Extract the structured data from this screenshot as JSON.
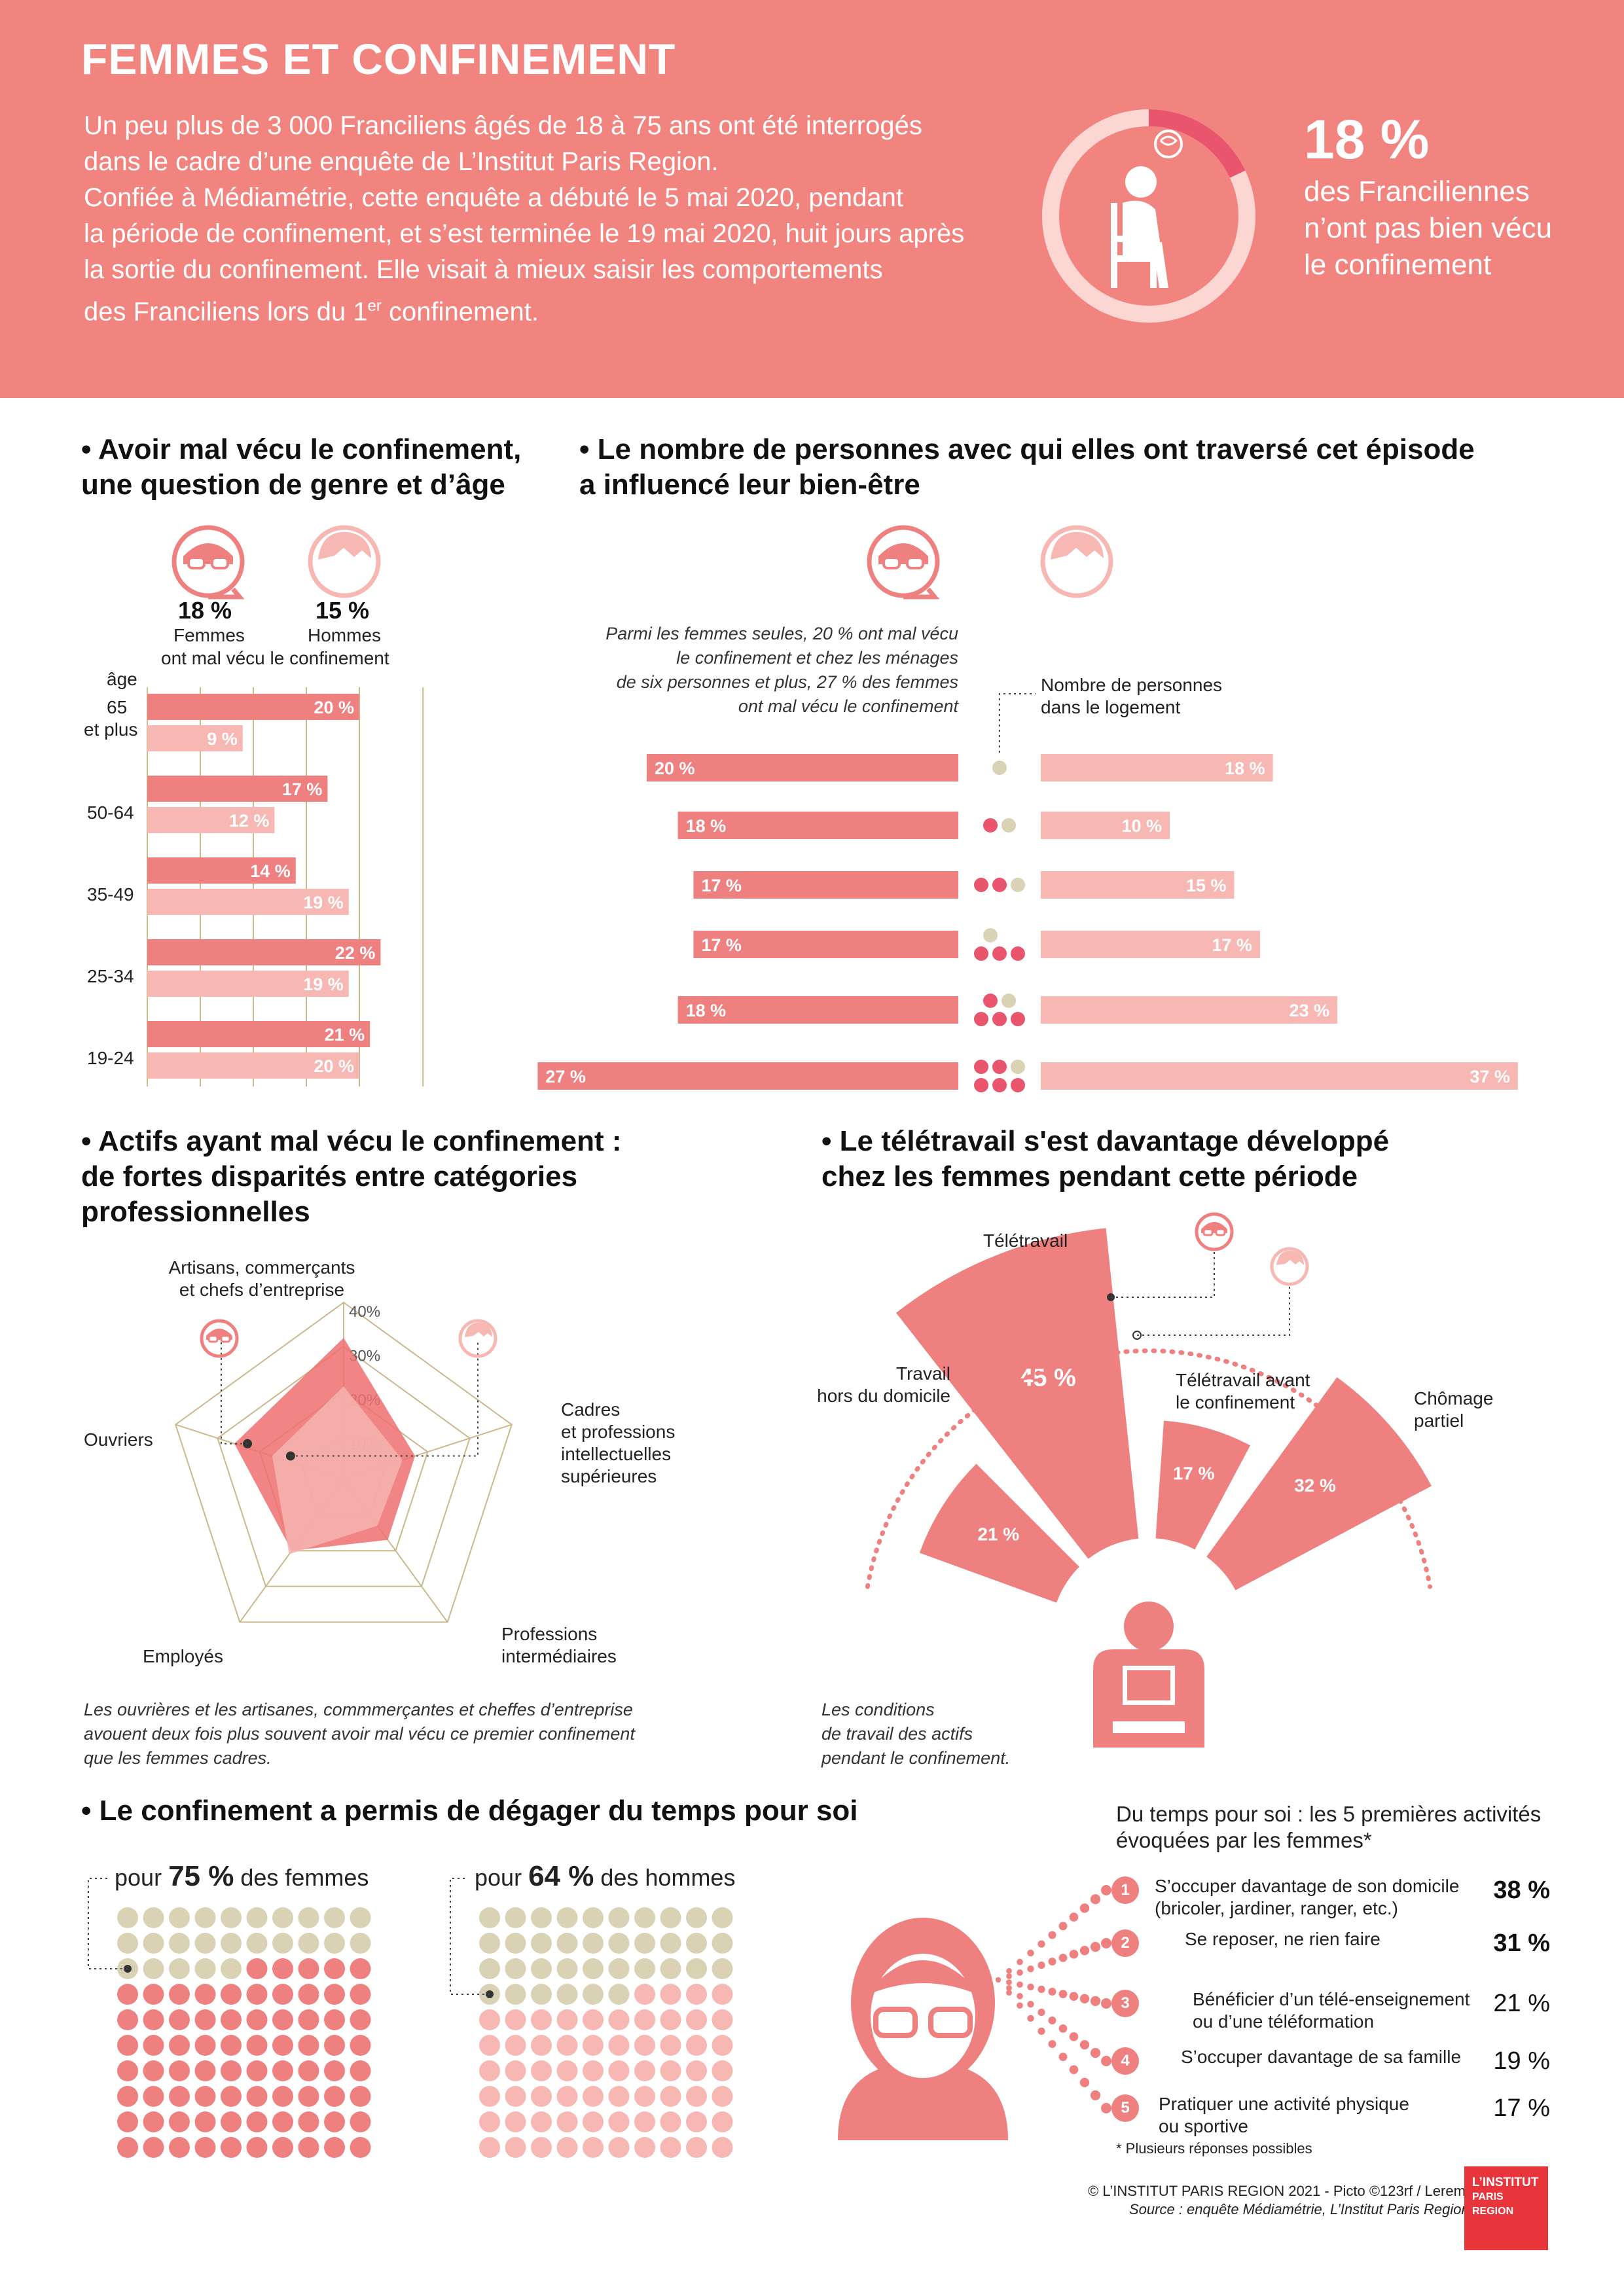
{
  "colors": {
    "header": "#f2847f",
    "women": "#ee8080",
    "men": "#f7b8b4",
    "women_dark": "#e8556c",
    "neutral": "#d9d2b5",
    "women_radar": "#ee7070",
    "men_radar": "#f6b4b0"
  },
  "header": {
    "title": "FEMMES ET CONFINEMENT",
    "intro": [
      "Un peu plus de 3 000 Franciliens âgés de 18 à 75 ans ont été interrogés",
      "dans le cadre d’une enquête de L’Institut Paris Region.",
      "Confiée à Médiamétrie, cette enquête a débuté le 5 mai 2020, pendant",
      "la période de confinement, et s’est terminée le 19 mai 2020, huit jours après",
      "la sortie du confinement. Elle visait à mieux saisir les comportements",
      "des Franciliens lors du 1"
    ],
    "intro_sup": "er",
    "intro_end": " confinement.",
    "stat_value": "18 %",
    "stat_fraction": 0.18,
    "stat_caption": [
      "des Franciliennes",
      "n’ont pas bien vécu",
      "le confinement"
    ]
  },
  "s1": {
    "title": [
      "• Avoir mal vécu le confinement,",
      "une question de genre et d’âge"
    ],
    "women_pct": "18 %",
    "women_lbl": "Femmes",
    "men_pct": "15 %",
    "men_lbl": "Hommes",
    "subtitle": "ont mal vécu le confinement",
    "age_lbl": "âge",
    "chart_data": {
      "type": "bar",
      "categories": [
        "65 et plus",
        "50-64",
        "35-49",
        "25-34",
        "19-24"
      ],
      "series": [
        {
          "name": "Femmes",
          "values": [
            20,
            17,
            14,
            22,
            21
          ],
          "labels": [
            "20 %",
            "17 %",
            "14 %",
            "22 %",
            "21 %"
          ]
        },
        {
          "name": "Hommes",
          "values": [
            9,
            12,
            19,
            19,
            20
          ],
          "labels": [
            "9 %",
            "12 %",
            "19 %",
            "19 %",
            "20 %"
          ]
        }
      ]
    },
    "cat_lines": [
      [
        "65",
        "et plus"
      ],
      [
        "50-64"
      ],
      [
        "35-49"
      ],
      [
        "25-34"
      ],
      [
        "19-24"
      ]
    ]
  },
  "s2": {
    "title": [
      "• Le nombre de personnes avec qui elles ont traversé cet épisode",
      "a influencé leur bien-être"
    ],
    "note": [
      "Parmi les femmes seules, 20 % ont mal vécu",
      "le confinement et chez les ménages",
      "de six personnes et plus, 27 % des femmes",
      "ont mal vécu le confinement"
    ],
    "legend": [
      "Nombre de personnes",
      "dans le logement"
    ],
    "chart_data": {
      "type": "bar",
      "categories": [
        "1",
        "2",
        "3",
        "4",
        "5",
        "6 et plus"
      ],
      "series": [
        {
          "name": "Femmes",
          "values": [
            20,
            18,
            17,
            17,
            18,
            27
          ],
          "labels": [
            "20 %",
            "18 %",
            "17 %",
            "17 %",
            "18 %",
            "27 %"
          ]
        },
        {
          "name": "Hommes",
          "values": [
            18,
            10,
            15,
            17,
            23,
            37
          ],
          "labels": [
            "18 %",
            "10 %",
            "15 %",
            "17 %",
            "23 %",
            "37 %"
          ]
        }
      ]
    }
  },
  "s3": {
    "title": [
      "• Actifs ayant mal vécu le confinement :",
      "de fortes disparités entre catégories",
      "professionnelles"
    ],
    "axes": {
      "top": [
        "Artisans, commerçants",
        "et chefs d’entreprise"
      ],
      "right": [
        "Cadres",
        "et professions",
        "intellectuelles",
        "supérieures"
      ],
      "bottom_right": [
        "Professions",
        "intermédiaires"
      ],
      "bottom_left": [
        "Employés"
      ],
      "left": [
        "Ouvriers"
      ]
    },
    "ticks": [
      "10%",
      "20%",
      "30%",
      "40%"
    ],
    "note": [
      "Les ouvrières et les artisanes, commmerçantes et cheffes d’entreprise",
      "avouent deux fois plus souvent avoir mal vécu ce premier confinement",
      "que les femmes cadres."
    ],
    "chart_data": {
      "type": "radar",
      "categories": [
        "Artisans, commerçants et chefs d’entreprise",
        "Cadres et professions intellectuelles supérieures",
        "Professions intermédiaires",
        "Employés",
        "Ouvriers"
      ],
      "rlim": [
        0,
        40
      ],
      "series": [
        {
          "name": "Femmes",
          "values": [
            32,
            17,
            17,
            20,
            26
          ]
        },
        {
          "name": "Hommes",
          "values": [
            21,
            14,
            13,
            21,
            17
          ]
        }
      ]
    }
  },
  "s4": {
    "title": [
      "• Le télétravail s'est davantage développé",
      "chez les femmes pendant cette période"
    ],
    "note": [
      "Les conditions",
      "de travail des actifs",
      "pendant le confinement."
    ],
    "cat_lines": [
      [
        "Travail",
        "hors du domicile"
      ],
      [
        "Télétravail"
      ],
      [
        "Télétravail avant",
        "le confinement"
      ],
      [
        "Chômage",
        "partiel"
      ]
    ],
    "chart_data": {
      "type": "radial-bar",
      "categories": [
        "Travail hors du domicile",
        "Télétravail",
        "Télétravail avant le confinement",
        "Chômage partiel"
      ],
      "values": [
        21,
        45,
        17,
        32
      ],
      "labels": [
        "21 %",
        "45 %",
        "17 %",
        "32 %"
      ]
    }
  },
  "s5": {
    "title": "• Le confinement a permis de dégager du temps pour soi",
    "women": {
      "pre": "pour ",
      "pct": "75 %",
      "post": " des femmes",
      "value": 75
    },
    "men": {
      "pre": "pour ",
      "pct": "64 %",
      "post": " des hommes",
      "value": 64
    },
    "activities_title": [
      "Du temps pour soi : les 5 premières activités",
      "évoquées par les femmes*"
    ],
    "activities": [
      {
        "n": "1",
        "text": [
          "S’occuper davantage de son domicile",
          "(bricoler, jardiner, ranger, etc.)"
        ],
        "value": "38 %",
        "bold": true
      },
      {
        "n": "2",
        "text": [
          "Se reposer, ne rien faire"
        ],
        "value": "31 %",
        "bold": true
      },
      {
        "n": "3",
        "text": [
          "Bénéficier d’un télé-enseignement",
          "ou d’une téléformation"
        ],
        "value": "21 %",
        "bold": false
      },
      {
        "n": "4",
        "text": [
          "S’occuper davantage de sa famille"
        ],
        "value": "19 %",
        "bold": false
      },
      {
        "n": "5",
        "text": [
          "Pratiquer une activité physique",
          "ou sportive"
        ],
        "value": "17 %",
        "bold": false
      }
    ],
    "footnote": "* Plusieurs réponses possibles"
  },
  "footer": {
    "credit": "© L’INSTITUT PARIS REGION 2021 - Picto ©123rf / Leremy",
    "source": "Source : enquête Médiamétrie, L’Institut Paris Region",
    "logo": [
      "L’INSTITUT",
      "PARIS",
      "REGION"
    ]
  }
}
